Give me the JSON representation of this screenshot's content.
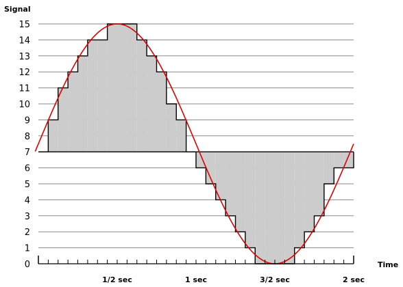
{
  "chart_data": {
    "type": "area",
    "ylabel": "Signal",
    "xlabel": "Time",
    "ylim": [
      0,
      15
    ],
    "xlim": [
      0,
      2
    ],
    "y_ticks": [
      "0",
      "1",
      "2",
      "3",
      "4",
      "5",
      "6",
      "7",
      "8",
      "9",
      "10",
      "11",
      "12",
      "13",
      "14",
      "15"
    ],
    "x_tick_labels": [
      {
        "x": 0.5,
        "label": "1/2 sec"
      },
      {
        "x": 1.0,
        "label": "1 sec"
      },
      {
        "x": 1.5,
        "label": "3/2 sec"
      },
      {
        "x": 2.0,
        "label": "2 sec"
      }
    ],
    "minor_ticks_per_second": 16,
    "grid": true,
    "baseline": 7,
    "series": [
      {
        "kind": "step",
        "x": [
          0,
          0.0625,
          0.125,
          0.1875,
          0.25,
          0.3125,
          0.375,
          0.4375,
          0.5,
          0.5625,
          0.625,
          0.6875,
          0.75,
          0.8125,
          0.875,
          0.9375,
          1.0,
          1.0625,
          1.125,
          1.1875,
          1.25,
          1.3125,
          1.375,
          1.4375,
          1.5,
          1.5625,
          1.625,
          1.6875,
          1.75,
          1.8125,
          1.875,
          1.9375
        ],
        "values": [
          7,
          9,
          11,
          12,
          13,
          14,
          14,
          15,
          15,
          15,
          14,
          13,
          12,
          10,
          9,
          7,
          6,
          5,
          4,
          3,
          2,
          1,
          0,
          0,
          0,
          0,
          1,
          2,
          3,
          5,
          6,
          6
        ],
        "color": "#000000",
        "fill": "#cccccc"
      },
      {
        "kind": "sine",
        "offset": 7.5,
        "amplitude": 7.5,
        "period_sec": 2,
        "color": "#dd0000"
      }
    ]
  }
}
